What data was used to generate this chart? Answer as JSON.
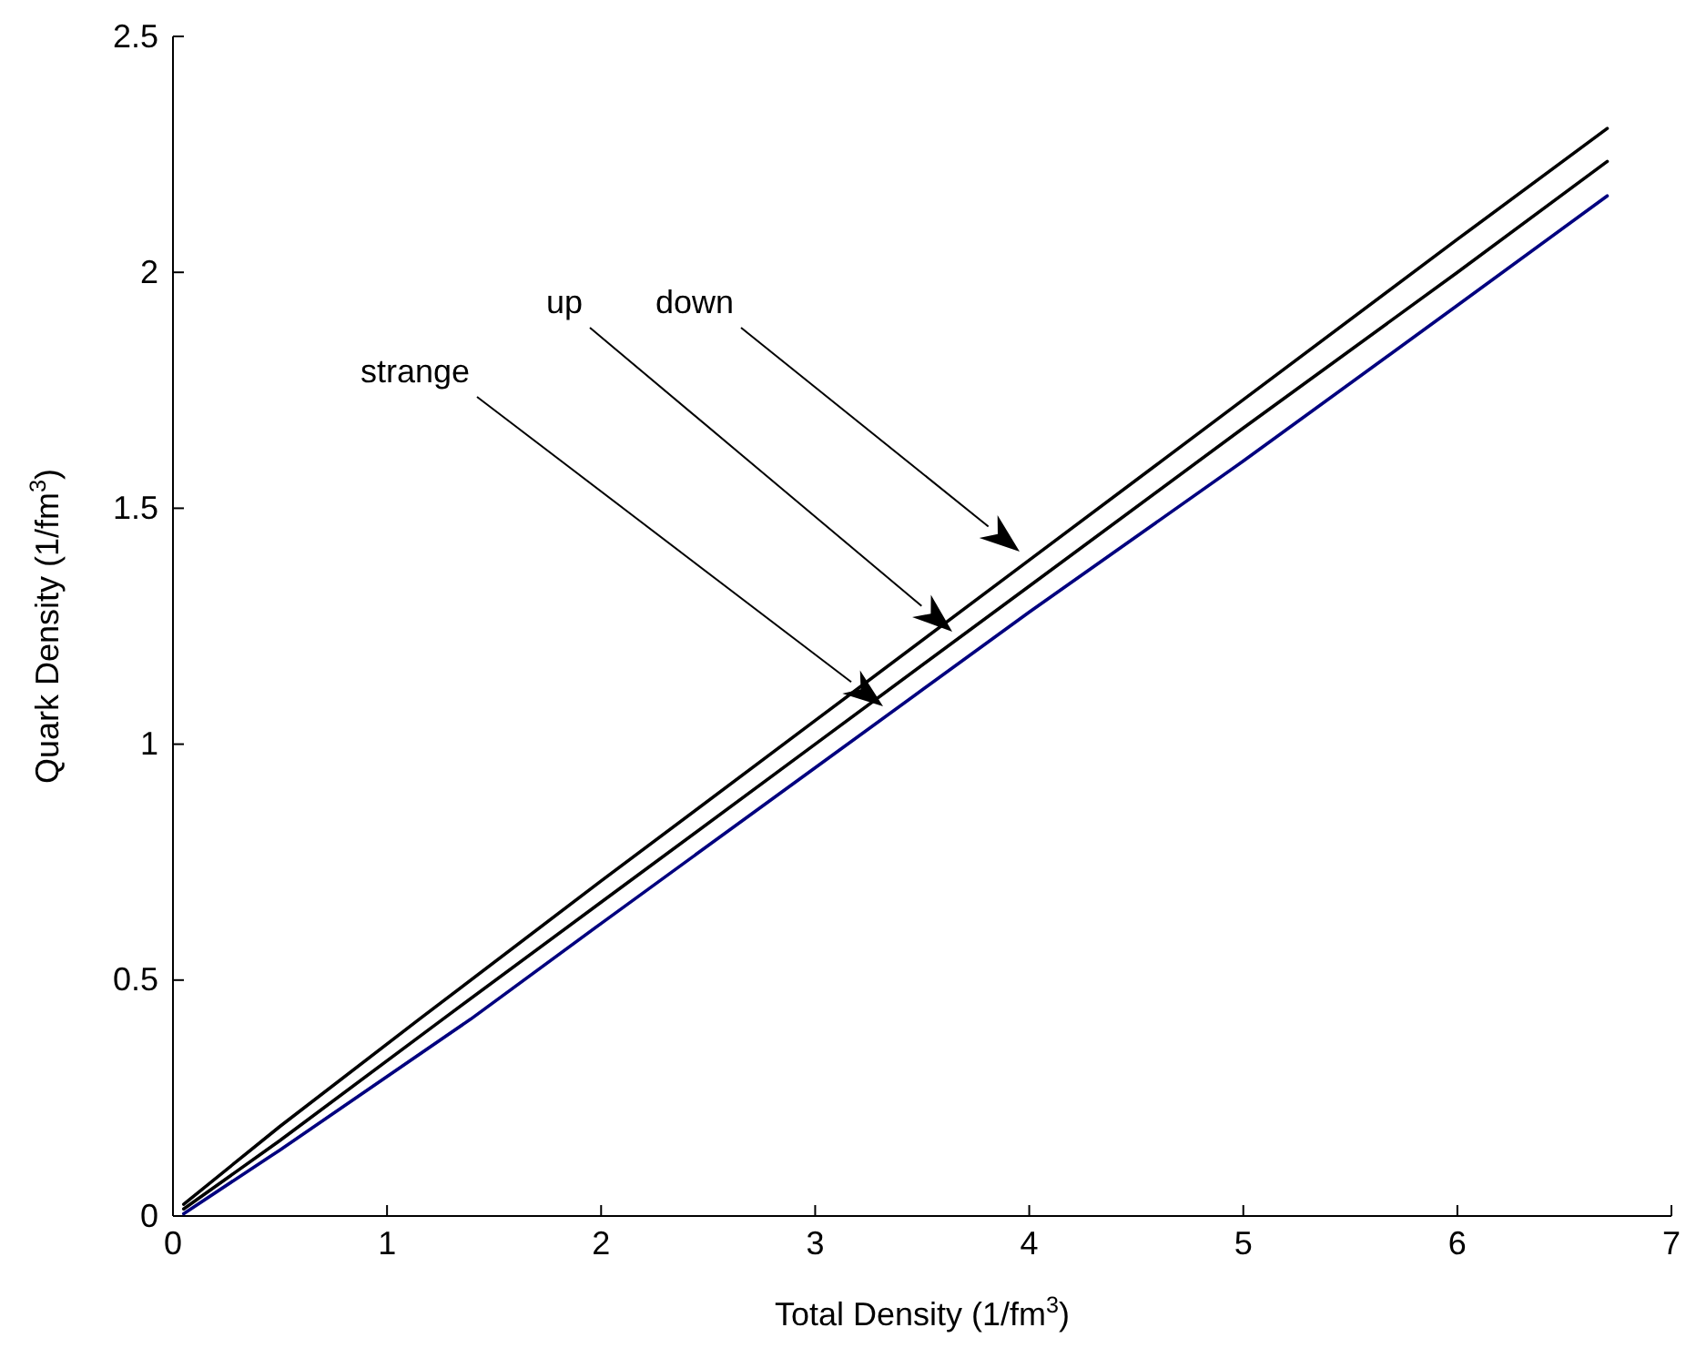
{
  "chart_data": {
    "type": "line",
    "xlabel": "Total Density (1/fm$^{3}$)",
    "ylabel": "Quark Density (1/fm$^{3}$)",
    "xlim": [
      0,
      7
    ],
    "ylim": [
      0,
      2.5
    ],
    "xticks": [
      0,
      1,
      2,
      3,
      4,
      5,
      6,
      7
    ],
    "yticks": [
      0,
      0.5,
      1,
      1.5,
      2,
      2.5
    ],
    "grid": false,
    "legend": false,
    "line_style": "solid",
    "marker": "none",
    "series": [
      {
        "color": "#000000",
        "x": [
          0.05,
          0.5,
          1.15,
          2,
          3,
          4,
          5,
          6,
          6.7
        ],
        "values": [
          0.025,
          0.19,
          0.417,
          0.71,
          1.05,
          1.39,
          1.73,
          2.07,
          2.305
        ]
      },
      {
        "color": "#000000",
        "x": [
          0.05,
          0.5,
          1.26,
          2,
          3,
          4,
          5,
          6,
          6.7
        ],
        "values": [
          0.015,
          0.16,
          0.417,
          0.665,
          1.0,
          1.335,
          1.67,
          2.0,
          2.235
        ]
      },
      {
        "color": "#00007f",
        "x": [
          0.05,
          0.5,
          1.39,
          2,
          3,
          4,
          5,
          6,
          6.7
        ],
        "values": [
          0.005,
          0.14,
          0.417,
          0.62,
          0.95,
          1.28,
          1.6,
          1.93,
          2.162
        ]
      }
    ],
    "annotations": [
      "down",
      "up",
      "strange"
    ]
  }
}
